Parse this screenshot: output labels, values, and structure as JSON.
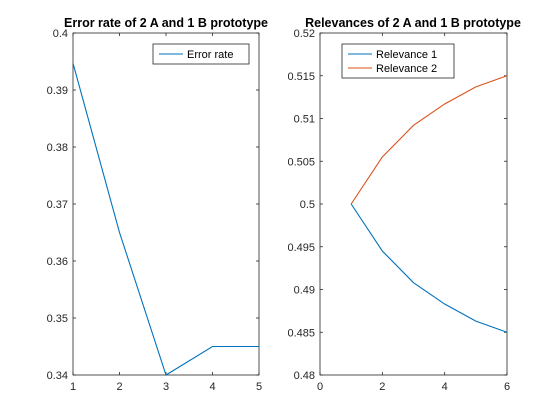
{
  "chart_data": [
    {
      "type": "line",
      "title": "Error rate of 2 A and 1 B prototype",
      "xlabel": "",
      "ylabel": "",
      "xlim": [
        1,
        5
      ],
      "ylim": [
        0.34,
        0.4
      ],
      "xticks": [
        "1",
        "2",
        "3",
        "4",
        "5"
      ],
      "yticks": [
        "0.34",
        "0.35",
        "0.36",
        "0.37",
        "0.38",
        "0.39",
        "0.4"
      ],
      "legend_position": "top-right",
      "grid": false,
      "series": [
        {
          "name": "Error rate",
          "color": "#0072BD",
          "x": [
            1,
            2,
            3,
            4,
            5
          ],
          "y": [
            0.3947,
            0.365,
            0.34,
            0.345,
            0.345
          ]
        }
      ]
    },
    {
      "type": "line",
      "title": "Relevances of 2 A and 1 B prototype",
      "xlabel": "",
      "ylabel": "",
      "xlim": [
        0,
        6
      ],
      "ylim": [
        0.48,
        0.52
      ],
      "xticks": [
        "0",
        "2",
        "4",
        "6"
      ],
      "yticks": [
        "0.48",
        "0.485",
        "0.49",
        "0.495",
        "0.5",
        "0.505",
        "0.51",
        "0.515",
        "0.52"
      ],
      "legend_position": "top-left",
      "grid": false,
      "series": [
        {
          "name": "Relevance 1",
          "color": "#0072BD",
          "x": [
            1,
            2,
            3,
            4,
            5,
            6
          ],
          "y": [
            0.5,
            0.4945,
            0.4908,
            0.4883,
            0.4863,
            0.485
          ]
        },
        {
          "name": "Relevance 2",
          "color": "#D95319",
          "x": [
            1,
            2,
            3,
            4,
            5,
            6
          ],
          "y": [
            0.5,
            0.5055,
            0.5092,
            0.5117,
            0.5137,
            0.515
          ]
        }
      ]
    }
  ]
}
